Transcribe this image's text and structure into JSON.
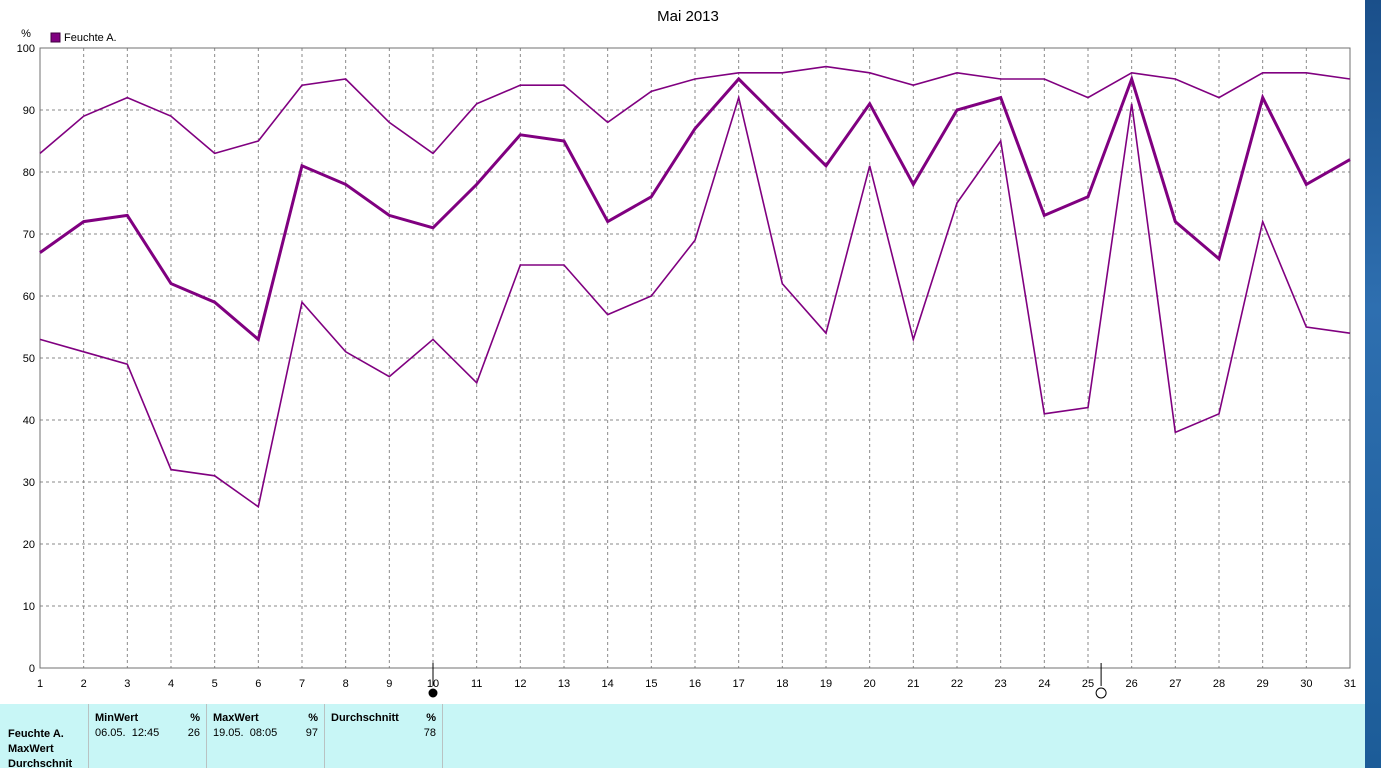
{
  "chart_data": {
    "type": "line",
    "title": "Mai 2013",
    "ylabel": "%",
    "ylim": [
      0,
      100
    ],
    "yticks": [
      "0",
      "10",
      "20",
      "30",
      "40",
      "50",
      "60",
      "70",
      "80",
      "90",
      "100"
    ],
    "x": [
      "1",
      "2",
      "3",
      "4",
      "5",
      "6",
      "7",
      "8",
      "9",
      "10",
      "11",
      "12",
      "13",
      "14",
      "15",
      "16",
      "17",
      "18",
      "19",
      "20",
      "21",
      "22",
      "23",
      "24",
      "25",
      "26",
      "27",
      "28",
      "29",
      "30",
      "31"
    ],
    "legend": "Feuchte A.",
    "color": "#800080",
    "grid": true,
    "series": [
      {
        "role": "max",
        "values": [
          83,
          89,
          92,
          89,
          83,
          85,
          94,
          95,
          88,
          83,
          91,
          94,
          94,
          88,
          93,
          95,
          96,
          96,
          97,
          96,
          94,
          96,
          95,
          95,
          92,
          96,
          95,
          92,
          96,
          96,
          95
        ]
      },
      {
        "role": "avg",
        "values": [
          67,
          72,
          73,
          62,
          59,
          53,
          81,
          78,
          73,
          71,
          78,
          86,
          85,
          72,
          76,
          87,
          95,
          88,
          81,
          91,
          78,
          90,
          92,
          73,
          76,
          95,
          72,
          66,
          92,
          78,
          82
        ]
      },
      {
        "role": "min",
        "values": [
          53,
          51,
          49,
          32,
          31,
          26,
          59,
          51,
          47,
          53,
          46,
          65,
          65,
          57,
          60,
          69,
          92,
          62,
          54,
          81,
          53,
          75,
          85,
          41,
          42,
          91,
          38,
          41,
          72,
          55,
          54
        ]
      }
    ],
    "markers": [
      {
        "day": 10,
        "style": "filled"
      },
      {
        "day": 25.3,
        "style": "open"
      }
    ]
  },
  "stats": {
    "row_labels": [
      "Feuchte A.",
      "MaxWert",
      "Durchschnit"
    ],
    "columns": [
      {
        "header": "MinWert",
        "unit": "%",
        "date": "06.05.  12:45",
        "value": "26"
      },
      {
        "header": "MaxWert",
        "unit": "%",
        "date": "19.05.  08:05",
        "value": "97"
      },
      {
        "header": "Durchschnitt",
        "unit": "%",
        "date": "",
        "value": "78"
      }
    ]
  }
}
